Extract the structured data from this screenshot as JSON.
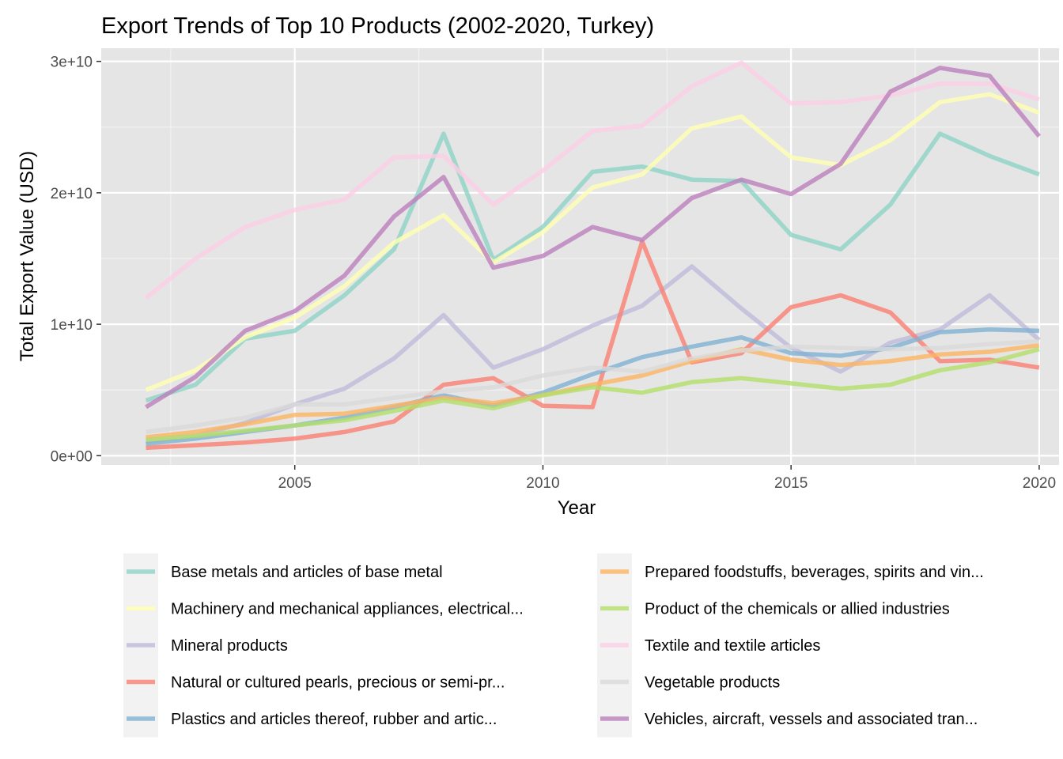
{
  "chart_data": {
    "type": "line",
    "title": "Export Trends of Top 10 Products (2002-2020, Turkey)",
    "xlabel": "Year",
    "ylabel": "Total Export Value (USD)",
    "xlim": [
      2001.1,
      2020.4
    ],
    "ylim": [
      -700000000.0,
      31000000000.0
    ],
    "x_ticks": [
      2005,
      2010,
      2015,
      2020
    ],
    "x_tick_labels": [
      "2005",
      "2010",
      "2015",
      "2020"
    ],
    "y_ticks": [
      0,
      10000000000.0,
      20000000000.0,
      30000000000.0
    ],
    "y_tick_labels": [
      "0e+00",
      "1e+10",
      "2e+10",
      "3e+10"
    ],
    "grid": true,
    "legend_position": "bottom",
    "x": [
      2002,
      2003,
      2004,
      2005,
      2006,
      2007,
      2008,
      2009,
      2010,
      2011,
      2012,
      2013,
      2014,
      2015,
      2016,
      2017,
      2018,
      2019,
      2020
    ],
    "series": [
      {
        "name": "Base metals and articles of base metal",
        "color": "#8dd3c7",
        "values": [
          4200000000.0,
          5400000000.0,
          8900000000.0,
          9500000000.0,
          12200000000.0,
          15700000000.0,
          24500000000.0,
          14900000000.0,
          17400000000.0,
          21600000000.0,
          22000000000.0,
          21000000000.0,
          20900000000.0,
          16800000000.0,
          15700000000.0,
          19100000000.0,
          24500000000.0,
          22800000000.0,
          21400000000.0
        ]
      },
      {
        "name": "Machinery and mechanical appliances, electrical...",
        "color": "#ffffb3",
        "values": [
          5000000000.0,
          6500000000.0,
          9000000000.0,
          10500000000.0,
          12900000000.0,
          16200000000.0,
          18300000000.0,
          14700000000.0,
          17000000000.0,
          20400000000.0,
          21400000000.0,
          24900000000.0,
          25800000000.0,
          22700000000.0,
          22100000000.0,
          24000000000.0,
          26900000000.0,
          27500000000.0,
          26100000000.0
        ]
      },
      {
        "name": "Mineral products",
        "color": "#bebada",
        "values": [
          1100000000.0,
          1500000000.0,
          2500000000.0,
          3900000000.0,
          5100000000.0,
          7400000000.0,
          10700000000.0,
          6700000000.0,
          8100000000.0,
          9900000000.0,
          11400000000.0,
          14400000000.0,
          11200000000.0,
          8200000000.0,
          6400000000.0,
          8600000000.0,
          9600000000.0,
          12200000000.0,
          8800000000.0
        ]
      },
      {
        "name": "Natural or cultured pearls, precious or semi-pr...",
        "color": "#fb8072",
        "values": [
          600000000.0,
          800000000.0,
          1000000000.0,
          1300000000.0,
          1800000000.0,
          2600000000.0,
          5400000000.0,
          5900000000.0,
          3800000000.0,
          3700000000.0,
          16300000000.0,
          7100000000.0,
          7800000000.0,
          11300000000.0,
          12200000000.0,
          10900000000.0,
          7200000000.0,
          7300000000.0,
          6700000000.0
        ]
      },
      {
        "name": "Plastics and articles thereof, rubber and artic...",
        "color": "#80b1d3",
        "values": [
          900000000.0,
          1300000000.0,
          1800000000.0,
          2300000000.0,
          2900000000.0,
          3700000000.0,
          4600000000.0,
          3800000000.0,
          4800000000.0,
          6200000000.0,
          7500000000.0,
          8300000000.0,
          9000000000.0,
          7800000000.0,
          7600000000.0,
          8200000000.0,
          9400000000.0,
          9600000000.0,
          9500000000.0
        ]
      },
      {
        "name": "Prepared foodstuffs, beverages, spirits and vin...",
        "color": "#fdb462",
        "values": [
          1400000000.0,
          1800000000.0,
          2400000000.0,
          3100000000.0,
          3200000000.0,
          3800000000.0,
          4400000000.0,
          4000000000.0,
          4600000000.0,
          5400000000.0,
          6100000000.0,
          7200000000.0,
          8100000000.0,
          7300000000.0,
          6900000000.0,
          7200000000.0,
          7700000000.0,
          7900000000.0,
          8400000000.0
        ]
      },
      {
        "name": "Product of the chemicals or allied industries",
        "color": "#b3de69",
        "values": [
          1200000000.0,
          1500000000.0,
          1900000000.0,
          2300000000.0,
          2700000000.0,
          3400000000.0,
          4200000000.0,
          3600000000.0,
          4600000000.0,
          5200000000.0,
          4800000000.0,
          5600000000.0,
          5900000000.0,
          5500000000.0,
          5100000000.0,
          5400000000.0,
          6500000000.0,
          7100000000.0,
          8100000000.0
        ]
      },
      {
        "name": "Textile and textile articles",
        "color": "#fccde5",
        "values": [
          12000000000.0,
          15000000000.0,
          17400000000.0,
          18700000000.0,
          19500000000.0,
          22700000000.0,
          22800000000.0,
          19100000000.0,
          21700000000.0,
          24700000000.0,
          25100000000.0,
          28100000000.0,
          29900000000.0,
          26800000000.0,
          26900000000.0,
          27400000000.0,
          28300000000.0,
          28300000000.0,
          27100000000.0
        ]
      },
      {
        "name": "Vegetable products",
        "color": "#d9d9d9",
        "values": [
          1800000000.0,
          2300000000.0,
          2900000000.0,
          3900000000.0,
          3900000000.0,
          4400000000.0,
          4900000000.0,
          5200000000.0,
          6100000000.0,
          6700000000.0,
          6400000000.0,
          7400000000.0,
          8000000000.0,
          8300000000.0,
          8200000000.0,
          8100000000.0,
          8200000000.0,
          8500000000.0,
          8700000000.0
        ]
      },
      {
        "name": "Vehicles, aircraft, vessels and associated tran...",
        "color": "#bc80bd",
        "values": [
          3700000000.0,
          6000000000.0,
          9500000000.0,
          11000000000.0,
          13700000000.0,
          18200000000.0,
          21200000000.0,
          14300000000.0,
          15200000000.0,
          17400000000.0,
          16400000000.0,
          19600000000.0,
          21000000000.0,
          19900000000.0,
          22200000000.0,
          27700000000.0,
          29500000000.0,
          28900000000.0,
          24300000000.0
        ]
      }
    ]
  }
}
